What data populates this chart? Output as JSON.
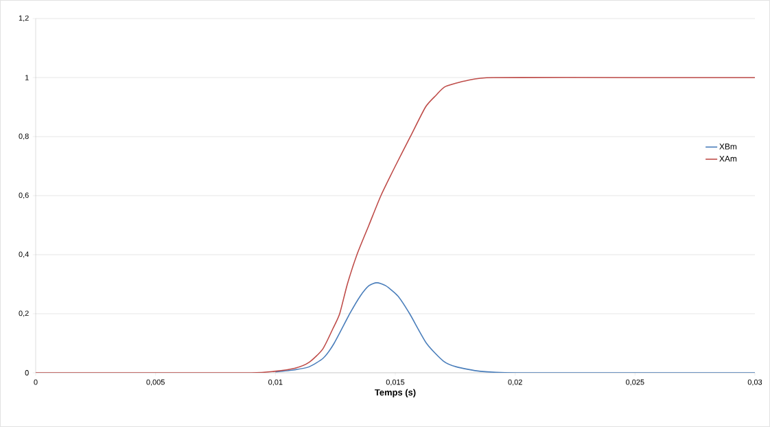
{
  "chart_data": {
    "type": "line",
    "xlabel": "Temps (s)",
    "xlim": [
      0,
      0.03
    ],
    "ylim": [
      0,
      1.2
    ],
    "xticks": [
      0,
      {
        "value": 0.005,
        "label": "0,005"
      },
      {
        "value": 0.01,
        "label": "0,01"
      },
      {
        "value": 0.015,
        "label": "0,015"
      },
      {
        "value": 0.02,
        "label": "0,02"
      },
      {
        "value": 0.025,
        "label": "0,025"
      },
      {
        "value": 0.03,
        "label": "0,03"
      }
    ],
    "yticks": [
      0,
      {
        "value": 0.2,
        "label": "0,2"
      },
      {
        "value": 0.4,
        "label": "0,4"
      },
      {
        "value": 0.6,
        "label": "0,6"
      },
      {
        "value": 0.8,
        "label": "0,8"
      },
      1,
      {
        "value": 1.2,
        "label": "1,2"
      }
    ],
    "grid": "y",
    "legend": "right",
    "marker": "none",
    "line_style": "solid",
    "series": [
      {
        "name": "XBm",
        "color": "#4a7ebb",
        "x": [
          0.01,
          0.0108,
          0.0114,
          0.012,
          0.01245,
          0.0131,
          0.01354,
          0.0139,
          0.01423,
          0.0146,
          0.01511,
          0.0156,
          0.0163,
          0.017,
          0.01755,
          0.01855,
          0.02,
          0.025,
          0.03
        ],
        "values": [
          0.003,
          0.01,
          0.02,
          0.05,
          0.1,
          0.2,
          0.26,
          0.295,
          0.305,
          0.295,
          0.26,
          0.2,
          0.1,
          0.04,
          0.02,
          0.005,
          0,
          0,
          0
        ]
      },
      {
        "name": "XAm",
        "color": "#be4b48",
        "x": [
          0,
          0.005,
          0.009,
          0.00996,
          0.0108,
          0.0114,
          0.01197,
          0.0124,
          0.01268,
          0.013,
          0.0134,
          0.0139,
          0.0144,
          0.015,
          0.01563,
          0.01626,
          0.0167,
          0.0171,
          0.018,
          0.0191,
          0.025,
          0.03
        ],
        "values": [
          0,
          0,
          0,
          0.005,
          0.015,
          0.035,
          0.08,
          0.15,
          0.2,
          0.3,
          0.4,
          0.5,
          0.6,
          0.7,
          0.8,
          0.9,
          0.94,
          0.97,
          0.99,
          1.0,
          1.0,
          1.0
        ]
      }
    ]
  }
}
